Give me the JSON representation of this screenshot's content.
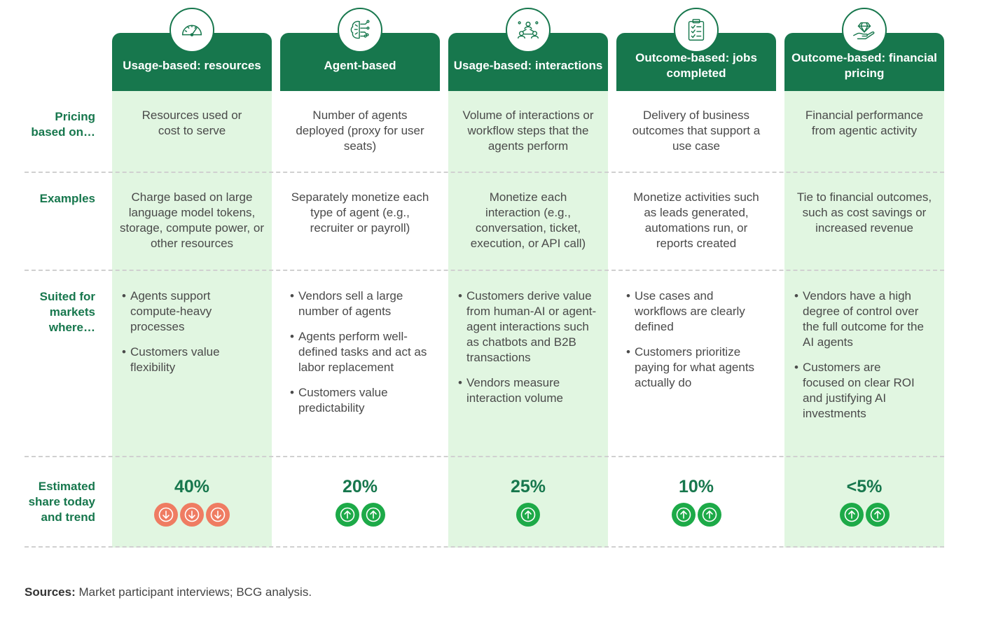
{
  "colors": {
    "header_green": "#17774d",
    "shade_green": "#e1f6e1",
    "up_green": "#1daa48",
    "down_red": "#ef7c62"
  },
  "row_labels": {
    "pricing": "Pricing based on…",
    "examples": "Examples",
    "suited": "Suited for markets where…",
    "share": "Estimated share today and trend"
  },
  "models": [
    {
      "title": "Usage-based: resources",
      "icon": "speedometer-icon",
      "pricing": "Resources used or cost to serve",
      "examples": "Charge based on large language model tokens, storage, compute power, or other resources",
      "suited": [
        "Agents support compute-heavy processes",
        "Customers value flexibility"
      ],
      "share": "40%",
      "trend": [
        "down",
        "down",
        "down"
      ]
    },
    {
      "title": "Agent-based",
      "icon": "brain-circuit-icon",
      "pricing": "Number of agents deployed (proxy for user seats)",
      "examples": "Separately monetize each type of agent (e.g., recruiter or payroll)",
      "suited": [
        "Vendors sell a large number of agents",
        "Agents perform well-defined tasks and act as labor replacement",
        "Customers value predictability"
      ],
      "share": "20%",
      "trend": [
        "up",
        "up"
      ]
    },
    {
      "title": "Usage-based: interactions",
      "icon": "people-network-icon",
      "pricing": "Volume of interactions or workflow steps that the agents perform",
      "examples": "Monetize each interaction (e.g., conversation, ticket, execution, or API call)",
      "suited": [
        "Customers derive value from human-AI or agent-agent interactions such as chatbots and B2B transactions",
        "Vendors measure interaction volume"
      ],
      "share": "25%",
      "trend": [
        "up"
      ]
    },
    {
      "title": "Outcome-based: jobs completed",
      "icon": "clipboard-checklist-icon",
      "pricing": "Delivery of business outcomes that support a use case",
      "examples": "Monetize activities such as leads generated, automations run, or reports created",
      "suited": [
        "Use cases and workflows are clearly defined",
        "Customers prioritize paying for what agents actually do"
      ],
      "share": "10%",
      "trend": [
        "up",
        "up"
      ]
    },
    {
      "title": "Outcome-based: financial pricing",
      "icon": "diamond-hand-icon",
      "pricing": "Financial performance from agentic activity",
      "examples": "Tie to financial outcomes, such as cost savings or increased revenue",
      "suited": [
        "Vendors have a high degree of control over the full outcome for the AI agents",
        "Customers are focused on clear ROI and justifying AI investments"
      ],
      "share": "<5%",
      "trend": [
        "up",
        "up"
      ]
    }
  ],
  "sources": {
    "label": "Sources:",
    "text": "Market participant interviews; BCG analysis."
  }
}
